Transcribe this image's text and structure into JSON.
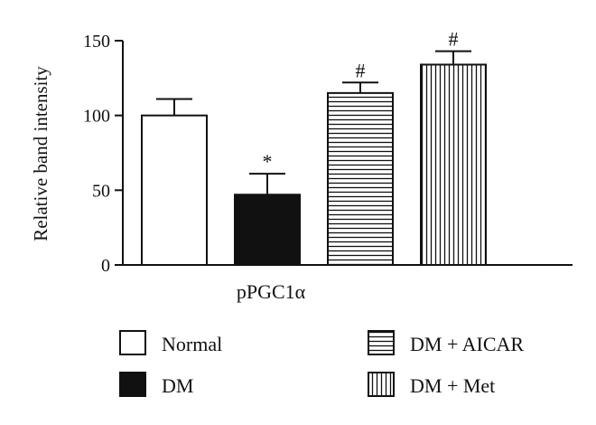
{
  "chart_data": {
    "type": "bar",
    "title": "",
    "xlabel": "pPGC1α",
    "ylabel": "Relative band intensity",
    "ylim": [
      0,
      150
    ],
    "yticks": [
      0,
      50,
      100,
      150
    ],
    "grid": false,
    "legend_position": "bottom",
    "series": [
      {
        "name": "Normal",
        "value": 100,
        "error": 11,
        "annotation": "",
        "fill": "white"
      },
      {
        "name": "DM",
        "value": 47,
        "error": 14,
        "annotation": "*",
        "fill": "black"
      },
      {
        "name": "DM + AICAR",
        "value": 115,
        "error": 7,
        "annotation": "#",
        "fill": "horizontal-stripes"
      },
      {
        "name": "DM + Met",
        "value": 134,
        "error": 9,
        "annotation": "#",
        "fill": "vertical-stripes"
      }
    ]
  }
}
